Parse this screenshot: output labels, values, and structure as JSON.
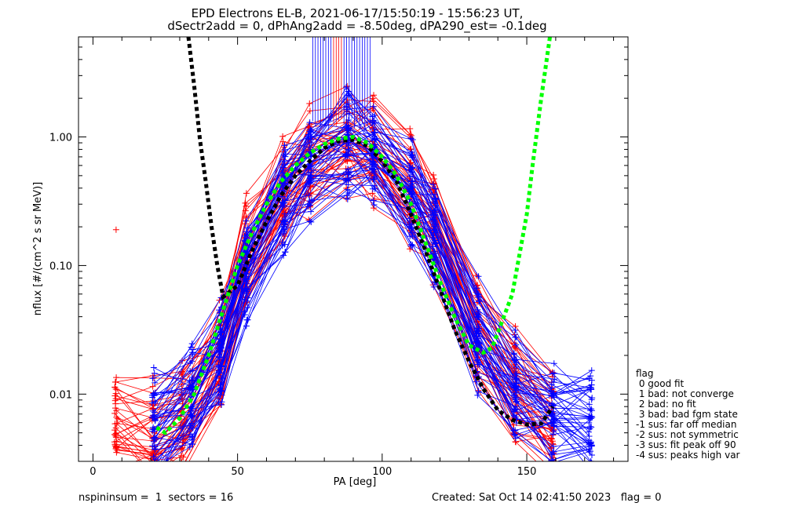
{
  "chart_data": {
    "type": "line",
    "title_line1": "EPD Electrons EL-B, 2021-06-17/15:50:19 - 15:56:23 UT,",
    "title_line2": "dSectr2add = 0, dPhAng2add = -8.50deg, dPA290_est=  -0.1deg",
    "xlabel": "PA [deg]",
    "ylabel": "nflux [#/(cm^2 s sr MeV)]",
    "xlim": [
      -5,
      185
    ],
    "ylim": [
      0.003,
      6
    ],
    "yscale": "log",
    "xticks": [
      0,
      50,
      100,
      150
    ],
    "yticks": [
      {
        "value": 0.01,
        "label": "0.01"
      },
      {
        "value": 0.1,
        "label": "0.10"
      },
      {
        "value": 1.0,
        "label": "1.00"
      }
    ],
    "series": [
      {
        "color": "#000000",
        "style": "dashed-thick",
        "x": [
          33,
          35,
          37,
          39,
          41,
          43,
          45,
          50,
          55,
          60,
          65,
          70,
          75,
          80,
          85,
          90,
          95,
          100,
          105,
          110,
          115,
          120,
          125,
          130,
          135,
          140,
          145,
          150,
          155,
          159
        ],
        "y": [
          6,
          2.5,
          0.95,
          0.45,
          0.2,
          0.1,
          0.057,
          0.07,
          0.13,
          0.22,
          0.35,
          0.5,
          0.65,
          0.82,
          0.93,
          0.95,
          0.85,
          0.65,
          0.45,
          0.25,
          0.13,
          0.065,
          0.032,
          0.018,
          0.011,
          0.0075,
          0.0063,
          0.0058,
          0.0059,
          0.008
        ]
      },
      {
        "color": "#00ff00",
        "style": "dashed-thick",
        "x": [
          22,
          25,
          30,
          35,
          40,
          45,
          50,
          55,
          60,
          65,
          70,
          75,
          80,
          85,
          90,
          95,
          100,
          105,
          110,
          115,
          120,
          125,
          130,
          135,
          138,
          140,
          145,
          150,
          152,
          155,
          158
        ],
        "y": [
          0.0055,
          0.005,
          0.0065,
          0.01,
          0.02,
          0.045,
          0.1,
          0.18,
          0.3,
          0.45,
          0.6,
          0.75,
          0.88,
          0.97,
          1.0,
          0.9,
          0.7,
          0.5,
          0.3,
          0.15,
          0.075,
          0.04,
          0.024,
          0.021,
          0.023,
          0.03,
          0.06,
          0.25,
          0.6,
          2.0,
          6.0
        ]
      }
    ],
    "bundles": [
      {
        "name": "red",
        "color": "#ff0000",
        "count": 42,
        "pa": [
          8,
          21,
          31,
          44,
          53,
          66,
          75,
          88,
          97,
          110,
          118,
          133,
          146,
          159
        ],
        "ref": [
          0.006,
          0.005,
          0.007,
          0.02,
          0.12,
          0.4,
          0.7,
          0.95,
          0.85,
          0.4,
          0.2,
          0.03,
          0.012,
          0.006
        ]
      },
      {
        "name": "blue",
        "color": "#0000ff",
        "count": 48,
        "pa": [
          21,
          34,
          44,
          53,
          66,
          75,
          88,
          97,
          110,
          118,
          133,
          146,
          159,
          172
        ],
        "ref": [
          0.006,
          0.01,
          0.02,
          0.1,
          0.35,
          0.65,
          0.95,
          0.85,
          0.4,
          0.2,
          0.03,
          0.012,
          0.008,
          0.007
        ]
      }
    ],
    "legend": {
      "placement": "right",
      "title": "flag",
      "entries": [
        " 0 good fit",
        " 1 bad: not converge",
        " 2 bad: no fit",
        " 3 bad: bad fgm state",
        "-1 sus: far off median",
        "-2 sus: not symmetric",
        "-3 sus: fit peak off 90",
        "-4 sus: peaks high var"
      ]
    },
    "grid": false
  },
  "footer": {
    "left": "nspininsum =  1  sectors = 16",
    "right": "Created: Sat Oct 14 02:41:50 2023   flag = 0"
  }
}
